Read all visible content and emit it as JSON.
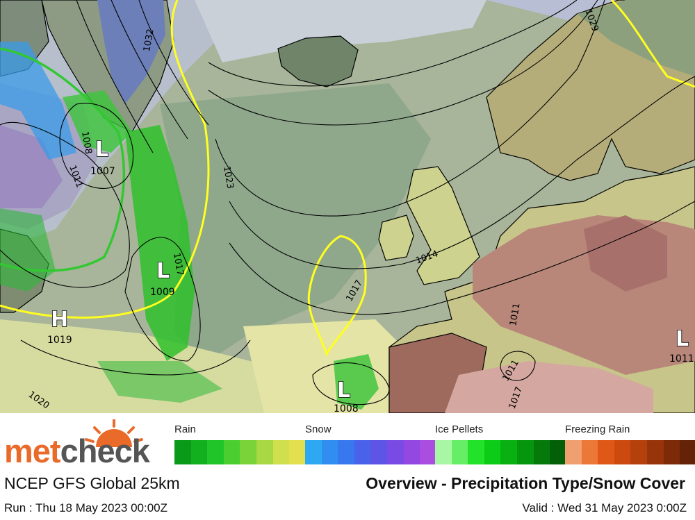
{
  "map": {
    "isobar_labels": [
      "1032",
      "1029",
      "1023",
      "1011",
      "1008",
      "1017",
      "1017",
      "1020",
      "1011",
      "1011",
      "1014",
      "1017"
    ],
    "systems": [
      {
        "type": "L",
        "value": "1007"
      },
      {
        "type": "L",
        "value": "1009"
      },
      {
        "type": "H",
        "value": "1019"
      },
      {
        "type": "L",
        "value": "1008"
      },
      {
        "type": "L",
        "value": "1011"
      }
    ]
  },
  "legend": {
    "rain": {
      "label": "Rain",
      "colors": [
        "#0a9a1a",
        "#12b01e",
        "#20c52a",
        "#4bcf30",
        "#7bd33a",
        "#a8d844",
        "#cfe04c",
        "#e2e04e"
      ]
    },
    "snow": {
      "label": "Snow",
      "colors": [
        "#2ea8f2",
        "#2f8ef0",
        "#3878ee",
        "#4a62ea",
        "#5e54e6",
        "#7a4be4",
        "#9348e2",
        "#a94ee0"
      ]
    },
    "ice_pellets": {
      "label": "Ice Pellets",
      "colors": [
        "#a8f7a4",
        "#66ee66",
        "#22e22a",
        "#0ccc18",
        "#08b012",
        "#06960e",
        "#057a0a",
        "#046008"
      ]
    },
    "freezing_rain": {
      "label": "Freezing Rain",
      "colors": [
        "#f0a070",
        "#ec7838",
        "#e05818",
        "#cc4a0e",
        "#b4400c",
        "#98340a",
        "#7c2a08",
        "#642206"
      ]
    }
  },
  "branding": {
    "met": "met",
    "check": "check"
  },
  "footer": {
    "model": "NCEP GFS Global 25km",
    "title": "Overview - Precipitation Type/Snow Cover",
    "run": "Run : Thu 18 May 2023 00:00Z",
    "valid": "Valid : Wed 31 May 2023 0:00Z"
  }
}
